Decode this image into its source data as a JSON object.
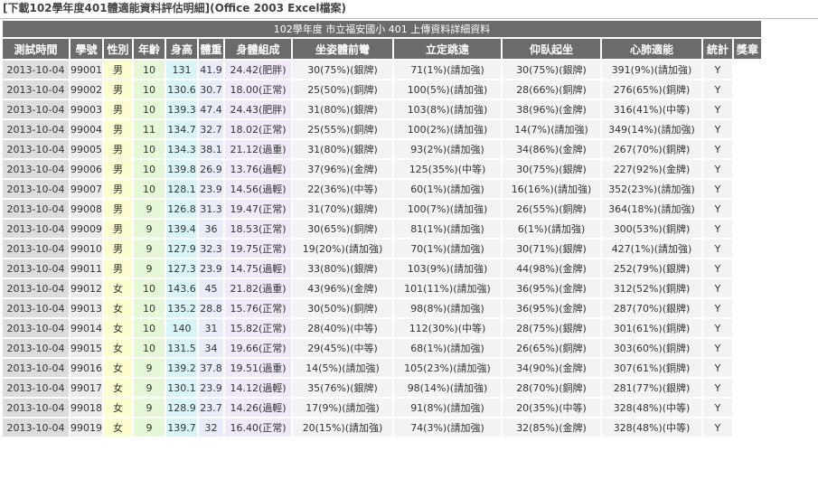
{
  "page_title": {
    "link_text": "[下載102學年度401體適能資料評估明細]",
    "ext_text": "(Office 2003 Excel檔案)"
  },
  "table_caption": "102學年度 市立福安國小 401 上傳資料詳細資料",
  "columns": [
    "測試時間",
    "學號",
    "性別",
    "年齡",
    "身高",
    "體重",
    "身體組成",
    "坐姿體前彎",
    "立定跳遠",
    "仰臥起坐",
    "心肺適能",
    "統計",
    "獎章"
  ],
  "rows": [
    [
      "2013-10-04",
      "99001",
      "男",
      "10",
      "131",
      "41.9",
      "24.42(肥胖)",
      "30(75%)(銀牌)",
      "71(1%)(請加強)",
      "30(75%)(銀牌)",
      "391(9%)(請加強)",
      "Y",
      ""
    ],
    [
      "2013-10-04",
      "99002",
      "男",
      "10",
      "130.6",
      "30.7",
      "18.00(正常)",
      "25(50%)(銅牌)",
      "100(5%)(請加強)",
      "28(66%)(銅牌)",
      "276(65%)(銅牌)",
      "Y",
      ""
    ],
    [
      "2013-10-04",
      "99003",
      "男",
      "10",
      "139.3",
      "47.4",
      "24.43(肥胖)",
      "31(80%)(銀牌)",
      "103(8%)(請加強)",
      "38(96%)(金牌)",
      "316(41%)(中等)",
      "Y",
      ""
    ],
    [
      "2013-10-04",
      "99004",
      "男",
      "11",
      "134.7",
      "32.7",
      "18.02(正常)",
      "25(55%)(銅牌)",
      "100(2%)(請加強)",
      "14(7%)(請加強)",
      "349(14%)(請加強)",
      "Y",
      ""
    ],
    [
      "2013-10-04",
      "99005",
      "男",
      "10",
      "134.3",
      "38.1",
      "21.12(過重)",
      "31(80%)(銀牌)",
      "93(2%)(請加強)",
      "34(86%)(金牌)",
      "267(70%)(銅牌)",
      "Y",
      ""
    ],
    [
      "2013-10-04",
      "99006",
      "男",
      "10",
      "139.8",
      "26.9",
      "13.76(過輕)",
      "37(96%)(金牌)",
      "125(35%)(中等)",
      "30(75%)(銀牌)",
      "227(92%)(金牌)",
      "Y",
      ""
    ],
    [
      "2013-10-04",
      "99007",
      "男",
      "10",
      "128.1",
      "23.9",
      "14.56(過輕)",
      "22(36%)(中等)",
      "60(1%)(請加強)",
      "16(16%)(請加強)",
      "352(23%)(請加強)",
      "Y",
      ""
    ],
    [
      "2013-10-04",
      "99008",
      "男",
      "9",
      "126.8",
      "31.3",
      "19.47(正常)",
      "31(70%)(銀牌)",
      "100(7%)(請加強)",
      "26(55%)(銅牌)",
      "364(18%)(請加強)",
      "Y",
      ""
    ],
    [
      "2013-10-04",
      "99009",
      "男",
      "9",
      "139.4",
      "36",
      "18.53(正常)",
      "30(65%)(銅牌)",
      "81(1%)(請加強)",
      "6(1%)(請加強)",
      "300(53%)(銅牌)",
      "Y",
      ""
    ],
    [
      "2013-10-04",
      "99010",
      "男",
      "9",
      "127.9",
      "32.3",
      "19.75(正常)",
      "19(20%)(請加強)",
      "70(1%)(請加強)",
      "30(71%)(銀牌)",
      "427(1%)(請加強)",
      "Y",
      ""
    ],
    [
      "2013-10-04",
      "99011",
      "男",
      "9",
      "127.3",
      "23.9",
      "14.75(過輕)",
      "33(80%)(銀牌)",
      "103(9%)(請加強)",
      "44(98%)(金牌)",
      "252(79%)(銀牌)",
      "Y",
      ""
    ],
    [
      "2013-10-04",
      "99012",
      "女",
      "10",
      "143.6",
      "45",
      "21.82(過重)",
      "43(96%)(金牌)",
      "101(11%)(請加強)",
      "36(95%)(金牌)",
      "312(52%)(銅牌)",
      "Y",
      ""
    ],
    [
      "2013-10-04",
      "99013",
      "女",
      "10",
      "135.2",
      "28.8",
      "15.76(正常)",
      "30(50%)(銅牌)",
      "98(8%)(請加強)",
      "36(95%)(金牌)",
      "287(70%)(銀牌)",
      "Y",
      ""
    ],
    [
      "2013-10-04",
      "99014",
      "女",
      "10",
      "140",
      "31",
      "15.82(正常)",
      "28(40%)(中等)",
      "112(30%)(中等)",
      "28(75%)(銀牌)",
      "301(61%)(銅牌)",
      "Y",
      ""
    ],
    [
      "2013-10-04",
      "99015",
      "女",
      "10",
      "131.5",
      "34",
      "19.66(正常)",
      "29(45%)(中等)",
      "68(1%)(請加強)",
      "26(65%)(銅牌)",
      "303(60%)(銅牌)",
      "Y",
      ""
    ],
    [
      "2013-10-04",
      "99016",
      "女",
      "9",
      "139.2",
      "37.8",
      "19.51(過重)",
      "14(5%)(請加強)",
      "105(23%)(請加強)",
      "34(90%)(金牌)",
      "307(61%)(銅牌)",
      "Y",
      ""
    ],
    [
      "2013-10-04",
      "99017",
      "女",
      "9",
      "130.1",
      "23.9",
      "14.12(過輕)",
      "35(76%)(銀牌)",
      "98(14%)(請加強)",
      "28(70%)(銅牌)",
      "281(77%)(銀牌)",
      "Y",
      ""
    ],
    [
      "2013-10-04",
      "99018",
      "女",
      "9",
      "128.9",
      "23.7",
      "14.26(過輕)",
      "17(9%)(請加強)",
      "91(8%)(請加強)",
      "20(35%)(中等)",
      "328(48%)(中等)",
      "Y",
      ""
    ],
    [
      "2013-10-04",
      "99019",
      "女",
      "9",
      "139.7",
      "32",
      "16.40(正常)",
      "20(15%)(請加強)",
      "74(3%)(請加強)",
      "32(85%)(金牌)",
      "328(48%)(中等)",
      "Y",
      ""
    ]
  ]
}
